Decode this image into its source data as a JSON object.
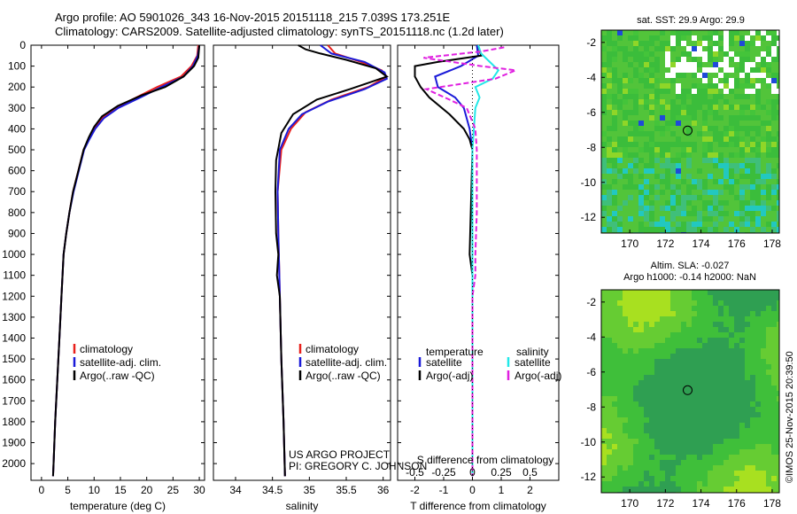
{
  "header": {
    "line1": "Argo profile: AO 5901026_343 16-Nov-2015 20151118_215 7.039S 173.251E",
    "line2": "Climatology: CARS2009. Satellite-adjusted climatology: synTS_20151118.nc (1.2d later)"
  },
  "credit": {
    "project": "US ARGO PROJECT",
    "pi": "PI: GREGORY C. JOHNSON",
    "stamp": "©IMOS 25-Nov-2015 20:39:50"
  },
  "colors": {
    "climatology": "#e8201c",
    "satellite": "#1a1ad8",
    "argo": "#000000",
    "sal_satellite": "#22e8e8",
    "sal_argo": "#e020e0"
  },
  "chart_data": [
    {
      "id": "temperature",
      "type": "line",
      "xlabel": "temperature (deg C)",
      "ylabel": "",
      "xlim": [
        -2,
        31
      ],
      "ylim": [
        2080,
        0
      ],
      "xticks": [
        0,
        5,
        10,
        15,
        20,
        25,
        30
      ],
      "yticks": [
        0,
        100,
        200,
        300,
        400,
        500,
        600,
        700,
        800,
        900,
        1000,
        1100,
        1200,
        1300,
        1400,
        1500,
        1600,
        1700,
        1800,
        1900,
        2000
      ],
      "legend": [
        "climatology",
        "satellite-adj. clim.",
        "Argo(..raw -QC)"
      ],
      "series": [
        {
          "name": "climatology",
          "color_key": "climatology",
          "points": [
            [
              29.8,
              0
            ],
            [
              29.6,
              50
            ],
            [
              28.5,
              100
            ],
            [
              26.5,
              150
            ],
            [
              22,
              200
            ],
            [
              18,
              250
            ],
            [
              14,
              300
            ],
            [
              11.5,
              350
            ],
            [
              10,
              400
            ],
            [
              9,
              450
            ],
            [
              8,
              500
            ],
            [
              7,
              600
            ],
            [
              6,
              700
            ],
            [
              5.3,
              800
            ],
            [
              4.7,
              900
            ],
            [
              4.2,
              1000
            ],
            [
              3.8,
              1200
            ],
            [
              3.4,
              1400
            ],
            [
              3,
              1600
            ],
            [
              2.6,
              1800
            ],
            [
              2.3,
              2000
            ],
            [
              2.2,
              2060
            ]
          ]
        },
        {
          "name": "satellite-adj. clim.",
          "color_key": "satellite",
          "points": [
            [
              30,
              0
            ],
            [
              29.7,
              50
            ],
            [
              28.8,
              100
            ],
            [
              27,
              150
            ],
            [
              22.8,
              200
            ],
            [
              18.8,
              250
            ],
            [
              14.6,
              300
            ],
            [
              11.8,
              350
            ],
            [
              10.2,
              400
            ],
            [
              9.1,
              450
            ],
            [
              8.1,
              500
            ],
            [
              7.1,
              600
            ],
            [
              6.1,
              700
            ],
            [
              5.3,
              800
            ],
            [
              4.7,
              900
            ],
            [
              4.2,
              1000
            ],
            [
              3.8,
              1200
            ],
            [
              3.4,
              1400
            ],
            [
              3,
              1600
            ],
            [
              2.6,
              1800
            ],
            [
              2.3,
              2000
            ],
            [
              2.2,
              2060
            ]
          ]
        },
        {
          "name": "Argo(..raw -QC)",
          "color_key": "argo",
          "points": [
            [
              30,
              0
            ],
            [
              29.8,
              60
            ],
            [
              29,
              100
            ],
            [
              27,
              150
            ],
            [
              23.5,
              200
            ],
            [
              19,
              240
            ],
            [
              14.5,
              290
            ],
            [
              11.5,
              340
            ],
            [
              10,
              390
            ],
            [
              9,
              440
            ],
            [
              8,
              500
            ],
            [
              7,
              600
            ],
            [
              6,
              700
            ],
            [
              5.3,
              800
            ],
            [
              4.7,
              900
            ],
            [
              4.2,
              1000
            ],
            [
              3.8,
              1200
            ],
            [
              3.4,
              1400
            ],
            [
              3,
              1600
            ],
            [
              2.6,
              1800
            ],
            [
              2.3,
              2000
            ],
            [
              2.2,
              2060
            ]
          ]
        }
      ]
    },
    {
      "id": "salinity",
      "type": "line",
      "xlabel": "salinity",
      "xlim": [
        33.7,
        36.1
      ],
      "ylim": [
        2080,
        0
      ],
      "xticks": [
        34,
        34.5,
        35,
        35.5,
        36
      ],
      "legend": [
        "climatology",
        "satellite-adj. clim.",
        "Argo(..raw -QC)"
      ],
      "series": [
        {
          "name": "climatology",
          "color_key": "climatology",
          "points": [
            [
              35.25,
              0
            ],
            [
              35.35,
              40
            ],
            [
              35.7,
              80
            ],
            [
              35.98,
              120
            ],
            [
              36.05,
              150
            ],
            [
              35.8,
              200
            ],
            [
              35.3,
              260
            ],
            [
              34.95,
              320
            ],
            [
              34.75,
              400
            ],
            [
              34.62,
              500
            ],
            [
              34.57,
              700
            ],
            [
              34.58,
              900
            ],
            [
              34.6,
              1200
            ],
            [
              34.62,
              1500
            ],
            [
              34.65,
              1800
            ],
            [
              34.67,
              2060
            ]
          ]
        },
        {
          "name": "satellite-adj. clim.",
          "color_key": "satellite",
          "points": [
            [
              35.15,
              0
            ],
            [
              35.3,
              40
            ],
            [
              35.75,
              80
            ],
            [
              36.02,
              130
            ],
            [
              36.05,
              160
            ],
            [
              35.75,
              210
            ],
            [
              35.25,
              270
            ],
            [
              34.9,
              330
            ],
            [
              34.72,
              400
            ],
            [
              34.6,
              500
            ],
            [
              34.57,
              700
            ],
            [
              34.58,
              900
            ],
            [
              34.6,
              1200
            ],
            [
              34.62,
              1500
            ],
            [
              34.65,
              1800
            ],
            [
              34.67,
              2060
            ]
          ]
        },
        {
          "name": "Argo(..raw -QC)",
          "color_key": "argo",
          "points": [
            [
              34.85,
              0
            ],
            [
              34.95,
              20
            ],
            [
              35.15,
              40
            ],
            [
              35.5,
              70
            ],
            [
              35.9,
              110
            ],
            [
              36.05,
              150
            ],
            [
              35.55,
              210
            ],
            [
              35.1,
              260
            ],
            [
              34.78,
              330
            ],
            [
              34.62,
              420
            ],
            [
              34.55,
              550
            ],
            [
              34.54,
              700
            ],
            [
              34.55,
              900
            ],
            [
              34.58,
              1000
            ],
            [
              34.56,
              1100
            ],
            [
              34.6,
              1200
            ],
            [
              34.62,
              1500
            ],
            [
              34.65,
              1800
            ],
            [
              34.67,
              2060
            ]
          ]
        }
      ]
    },
    {
      "id": "difference",
      "type": "line",
      "xlabel": "T difference from climatology",
      "top_label": "S difference from climatology",
      "xlim": [
        -2.6,
        3.0
      ],
      "ylim": [
        2080,
        0
      ],
      "xticks": [
        -2,
        -1,
        0,
        1,
        2
      ],
      "top_ticks": [
        "-0.5",
        "-0.25",
        "0",
        "0.25",
        "0.5"
      ],
      "legend_titles": [
        "temperature",
        "salinity"
      ],
      "legend": [
        "satellite",
        "Argo(-adj)",
        "satellite",
        "Argo(-adj)"
      ],
      "series": [
        {
          "name": "T satellite",
          "color_key": "satellite",
          "points": [
            [
              0.15,
              0
            ],
            [
              0.2,
              50
            ],
            [
              -0.4,
              100
            ],
            [
              -1.3,
              150
            ],
            [
              -1.2,
              200
            ],
            [
              -0.6,
              250
            ],
            [
              -0.3,
              300
            ],
            [
              -0.1,
              400
            ],
            [
              0,
              500
            ],
            [
              0,
              1000
            ],
            [
              0,
              1500
            ],
            [
              0,
              2060
            ]
          ]
        },
        {
          "name": "T Argo(-adj)",
          "color_key": "argo",
          "points": [
            [
              0.2,
              0
            ],
            [
              0.3,
              50
            ],
            [
              -1.2,
              80
            ],
            [
              -2.0,
              100
            ],
            [
              -2.0,
              150
            ],
            [
              -1.8,
              200
            ],
            [
              -1.5,
              250
            ],
            [
              -0.8,
              330
            ],
            [
              -0.3,
              400
            ],
            [
              -0.1,
              450
            ],
            [
              0,
              500
            ],
            [
              -0.1,
              1000
            ],
            [
              0,
              1100
            ],
            [
              0,
              1500
            ],
            [
              0,
              2060
            ]
          ]
        },
        {
          "name": "S satellite",
          "color_key": "sal_satellite",
          "points": [
            [
              0.2,
              0
            ],
            [
              0.3,
              40
            ],
            [
              0.9,
              120
            ],
            [
              0.7,
              160
            ],
            [
              0.1,
              200
            ],
            [
              0.25,
              250
            ],
            [
              0.1,
              300
            ],
            [
              0.05,
              400
            ],
            [
              0,
              500
            ],
            [
              0,
              1000
            ],
            [
              0,
              1500
            ],
            [
              0,
              2060
            ]
          ]
        },
        {
          "name": "S Argo(-adj)",
          "color_key": "sal_argo",
          "points": [
            [
              1.1,
              10
            ],
            [
              0.3,
              30
            ],
            [
              -1.7,
              60
            ],
            [
              0.3,
              100
            ],
            [
              1.5,
              120
            ],
            [
              0.8,
              160
            ],
            [
              -1.6,
              210
            ],
            [
              -0.8,
              260
            ],
            [
              -0.2,
              300
            ],
            [
              0.1,
              400
            ],
            [
              0.15,
              500
            ],
            [
              0.15,
              800
            ],
            [
              0.1,
              1000
            ],
            [
              0.1,
              1100
            ],
            [
              0,
              1200
            ],
            [
              0,
              1500
            ],
            [
              0,
              2060
            ]
          ]
        }
      ]
    },
    {
      "id": "sst-map",
      "type": "heatmap",
      "title": "sat. SST: 29.9 Argo: 29.9",
      "xlim": [
        168.4,
        178.4
      ],
      "ylim": [
        -12.9,
        -1.3
      ],
      "xticks": [
        170,
        172,
        174,
        176,
        178
      ],
      "yticks": [
        -2,
        -4,
        -6,
        -8,
        -10,
        -12
      ],
      "marker": [
        173.251,
        -7.039
      ]
    },
    {
      "id": "sla-map",
      "type": "heatmap",
      "title1": "Altim. SLA: -0.027",
      "title2": "Argo h1000: -0.14 h2000: NaN",
      "xlim": [
        168.4,
        178.4
      ],
      "ylim": [
        -12.9,
        -1.3
      ],
      "xticks": [
        170,
        172,
        174,
        176,
        178
      ],
      "yticks": [
        -2,
        -4,
        -6,
        -8,
        -10,
        -12
      ],
      "marker": [
        173.251,
        -7.039
      ]
    }
  ]
}
